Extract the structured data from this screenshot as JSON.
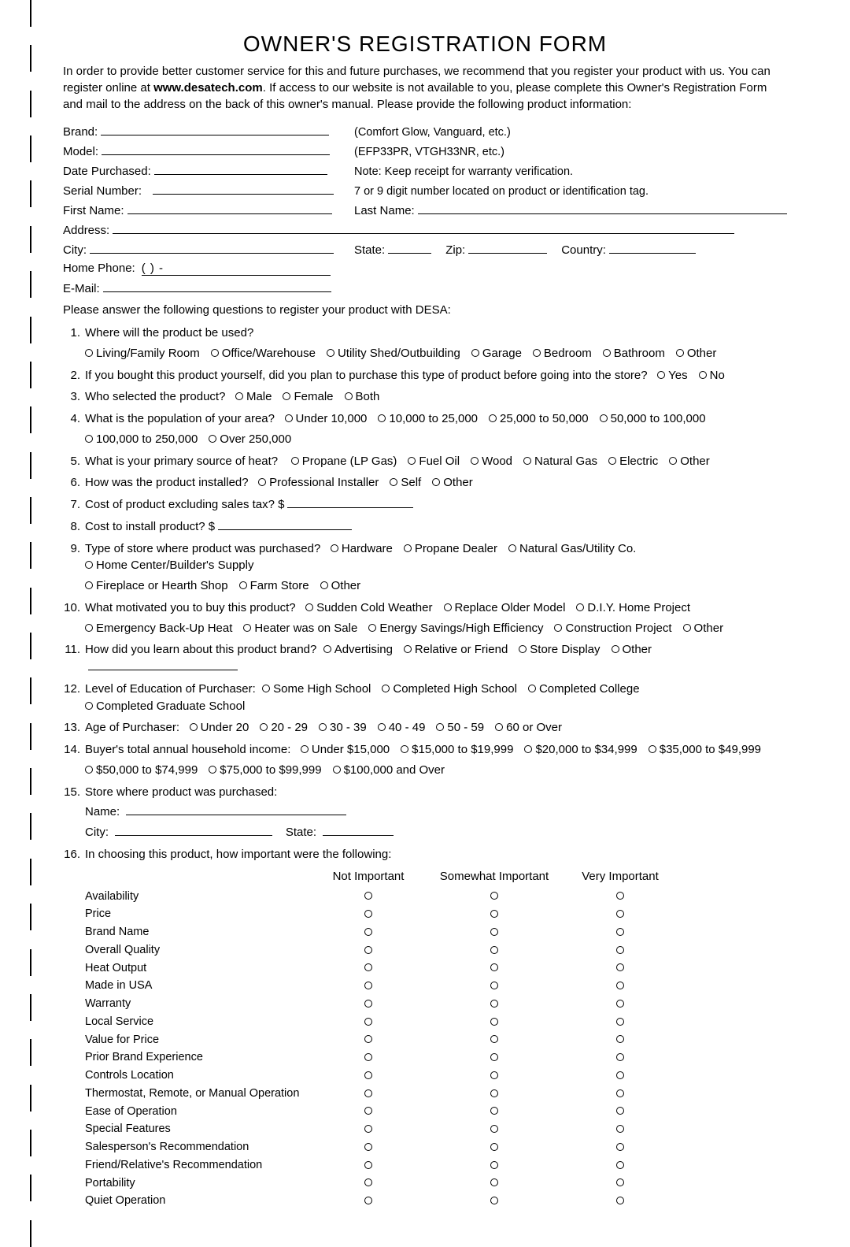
{
  "title": "OWNER'S REGISTRATION FORM",
  "intro_parts": {
    "p1": "In order to provide better customer service for this and future purchases, we recommend that you register your product with us. You can register online at ",
    "url": "www.desatech.com",
    "p2": ". If access to our website is not available to you, please complete this Owner's Registration Form and mail to the address on the back of this owner's manual. Please provide the following product information:"
  },
  "fields": {
    "brand": {
      "label": "Brand:",
      "hint": "(Comfort Glow, Vanguard, etc.)"
    },
    "model": {
      "label": "Model:",
      "hint": "(EFP33PR, VTGH33NR, etc.)"
    },
    "date_purchased": {
      "label": "Date Purchased:",
      "hint": "Note: Keep receipt for warranty verification."
    },
    "serial": {
      "label": "Serial Number:",
      "hint": "7 or 9 digit number located on product or identification tag."
    },
    "first_name": {
      "label": "First Name:"
    },
    "last_name": {
      "label": "Last Name:"
    },
    "address": {
      "label": "Address:"
    },
    "city": {
      "label": "City:"
    },
    "state": {
      "label": "State:"
    },
    "zip": {
      "label": "Zip:"
    },
    "country": {
      "label": "Country:"
    },
    "home_phone": {
      "label": "Home Phone:",
      "mask": "(          )            -"
    },
    "email": {
      "label": "E-Mail:"
    }
  },
  "q_intro": "Please answer the following questions to register your product with DESA:",
  "q1": {
    "num": "1.",
    "text": "Where will the product be used?",
    "opts": [
      "Living/Family Room",
      "Office/Warehouse",
      "Utility Shed/Outbuilding",
      "Garage",
      "Bedroom",
      "Bathroom",
      "Other"
    ]
  },
  "q2": {
    "num": "2.",
    "text": "If you bought this product yourself, did you plan to purchase this type of product before going into the store?",
    "opts": [
      "Yes",
      "No"
    ]
  },
  "q3": {
    "num": "3.",
    "text": "Who selected the product?",
    "opts": [
      "Male",
      "Female",
      "Both"
    ]
  },
  "q4": {
    "num": "4.",
    "text": "What is the population of your area?",
    "opts": [
      "Under 10,000",
      "10,000 to 25,000",
      "25,000 to 50,000",
      "50,000 to 100,000"
    ],
    "opts2": [
      "100,000 to 250,000",
      "Over 250,000"
    ]
  },
  "q5": {
    "num": "5.",
    "text": "What is your primary source of heat?",
    "opts": [
      "Propane (LP Gas)",
      "Fuel Oil",
      "Wood",
      "Natural Gas",
      "Electric",
      "Other"
    ]
  },
  "q6": {
    "num": "6.",
    "text": "How was the product installed?",
    "opts": [
      "Professional Installer",
      "Self",
      "Other"
    ]
  },
  "q7": {
    "num": "7.",
    "text": "Cost of product excluding sales tax? $"
  },
  "q8": {
    "num": "8.",
    "text": "Cost to install product? $"
  },
  "q9": {
    "num": "9.",
    "text": "Type of store where product was purchased?",
    "opts": [
      "Hardware",
      "Propane Dealer",
      "Natural Gas/Utility Co.",
      "Home Center/Builder's Supply"
    ],
    "opts2": [
      "Fireplace or Hearth Shop",
      "Farm Store",
      "Other"
    ]
  },
  "q10": {
    "num": "10.",
    "text": "What motivated you to buy this product?",
    "opts": [
      "Sudden Cold Weather",
      "Replace Older Model",
      "D.I.Y. Home Project"
    ],
    "opts2": [
      "Emergency Back-Up Heat",
      "Heater was on Sale",
      "Energy Savings/High Efficiency",
      "Construction Project",
      "Other"
    ]
  },
  "q11": {
    "num": "11.",
    "text": "How did you learn about this product brand?",
    "opts": [
      "Advertising",
      "Relative or Friend",
      "Store Display",
      "Other"
    ]
  },
  "q12": {
    "num": "12.",
    "text": "Level of Education of Purchaser:",
    "opts": [
      "Some High School",
      "Completed High School",
      "Completed College",
      "Completed Graduate School"
    ]
  },
  "q13": {
    "num": "13.",
    "text": "Age of Purchaser:",
    "opts": [
      "Under 20",
      "20 - 29",
      "30 - 39",
      "40 - 49",
      "50 - 59",
      "60 or Over"
    ]
  },
  "q14": {
    "num": "14.",
    "text": "Buyer's total annual household income:",
    "opts": [
      "Under $15,000",
      "$15,000 to $19,999",
      "$20,000 to $34,999",
      "$35,000 to $49,999"
    ],
    "opts2": [
      "$50,000 to $74,999",
      "$75,000 to $99,999",
      "$100,000 and Over"
    ]
  },
  "q15": {
    "num": "15.",
    "text": "Store where product was purchased:",
    "name_label": "Name:",
    "city_label": "City:",
    "state_label": "State:"
  },
  "q16": {
    "num": "16.",
    "text": "In choosing this product, how important were the following:",
    "headers": [
      "Not Important",
      "Somewhat Important",
      "Very Important"
    ],
    "rows": [
      "Availability",
      "Price",
      "Brand Name",
      "Overall Quality",
      "Heat Output",
      "Made in USA",
      "Warranty",
      "Local Service",
      "Value for Price",
      "Prior Brand Experience",
      "Controls Location",
      "Thermostat, Remote, or Manual Operation",
      "Ease of Operation",
      "Special Features",
      "Salesperson's Recommendation",
      "Friend/Relative's Recommendation",
      "Portability",
      "Quiet Operation"
    ]
  },
  "style": {
    "background": "#ffffff",
    "text_color": "#000000",
    "font_family": "Arial",
    "title_fontsize": 28,
    "body_fontsize": 15
  }
}
